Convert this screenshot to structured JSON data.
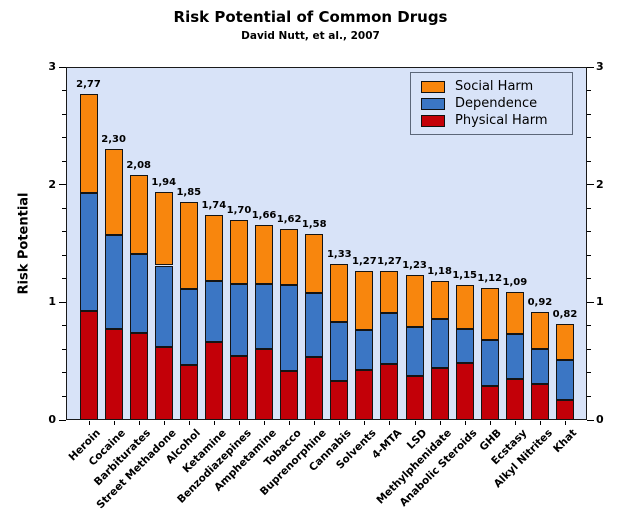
{
  "chart": {
    "title": "Risk Potential of Common Drugs",
    "subtitle": "David Nutt, et al., 2007",
    "ylabel": "Risk Potential"
  },
  "chart_data": {
    "type": "bar",
    "stacked": true,
    "title": "Risk Potential of Common Drugs",
    "subtitle": "David Nutt, et al., 2007",
    "xlabel": "",
    "ylabel": "Risk Potential",
    "ylim": [
      0,
      3
    ],
    "yticks_major": [
      "0",
      "1",
      "2",
      "3"
    ],
    "ytick_minor_step": 0.2,
    "grid": false,
    "legend_position": "top-right",
    "plot_background": "#d8e3f8",
    "axis_color": "#000000",
    "categories": [
      "Heroin",
      "Cocaine",
      "Barbiturates",
      "Street Methadone",
      "Alcohol",
      "Ketamine",
      "Benzodiazepines",
      "Amphetamine",
      "Tobacco",
      "Buprenorphine",
      "Cannabis",
      "Solvents",
      "4-MTA",
      "LSD",
      "Methylphenidate",
      "Anabolic Steroids",
      "GHB",
      "Ecstasy",
      "Alkyl Nitrites",
      "Khat"
    ],
    "series": [
      {
        "name": "Physical Harm",
        "color": "#c30008",
        "values": [
          0.927,
          0.777,
          0.743,
          0.62,
          0.467,
          0.667,
          0.543,
          0.603,
          0.413,
          0.533,
          0.33,
          0.427,
          0.48,
          0.377,
          0.44,
          0.483,
          0.287,
          0.35,
          0.31,
          0.167
        ]
      },
      {
        "name": "Dependence",
        "color": "#3b76c4",
        "values": [
          1.0,
          0.797,
          0.67,
          0.693,
          0.643,
          0.513,
          0.61,
          0.557,
          0.737,
          0.547,
          0.503,
          0.337,
          0.433,
          0.41,
          0.417,
          0.293,
          0.397,
          0.377,
          0.29,
          0.347
        ]
      },
      {
        "name": "Social Harm",
        "color": "#f8860d",
        "values": [
          0.843,
          0.726,
          0.667,
          0.627,
          0.74,
          0.56,
          0.547,
          0.5,
          0.47,
          0.5,
          0.497,
          0.506,
          0.357,
          0.443,
          0.323,
          0.374,
          0.436,
          0.363,
          0.32,
          0.306
        ]
      }
    ],
    "legend_order": [
      "Social Harm",
      "Dependence",
      "Physical Harm"
    ],
    "totals_labels": [
      "2,77",
      "2,30",
      "2,08",
      "1,94",
      "1,85",
      "1,74",
      "1,70",
      "1,66",
      "1,62",
      "1,58",
      "1,33",
      "1,27",
      "1,27",
      "1,23",
      "1,18",
      "1,15",
      "1,12",
      "1,09",
      "0,92",
      "0,82"
    ]
  }
}
